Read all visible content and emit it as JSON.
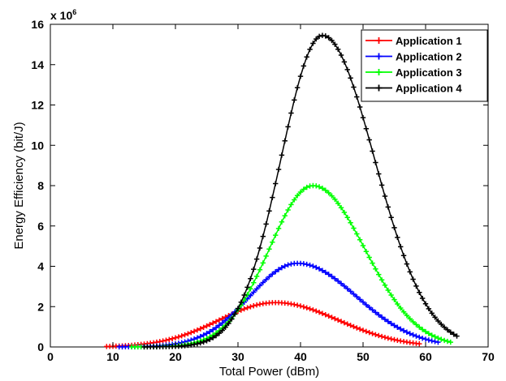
{
  "chart_data": {
    "type": "line",
    "xlabel": "Total Power (dBm)",
    "ylabel": "Energy Efficiency (bit/J)",
    "y_multiplier_base": "x 10",
    "y_multiplier_exp": "6",
    "xlim": [
      0,
      70
    ],
    "ylim": [
      0,
      16
    ],
    "x_ticks": [
      0,
      10,
      20,
      30,
      40,
      50,
      60,
      70
    ],
    "y_ticks": [
      0,
      2,
      4,
      6,
      8,
      10,
      12,
      14,
      16
    ],
    "grid": false,
    "legend_position": "top-right",
    "marker": "+",
    "series": [
      {
        "name": "Application 1",
        "color": "#ff0000",
        "x_start": 9,
        "x_end": 59,
        "peak_x": 36,
        "peak_y": 2.2,
        "sigma_left": 9.0,
        "sigma_right": 10.0
      },
      {
        "name": "Application 2",
        "color": "#0000ff",
        "x_start": 11,
        "x_end": 62,
        "peak_x": 39.5,
        "peak_y": 4.15,
        "sigma_left": 7.6,
        "sigma_right": 9.4
      },
      {
        "name": "Application 3",
        "color": "#00ff00",
        "x_start": 13,
        "x_end": 64,
        "peak_x": 42,
        "peak_y": 8.0,
        "sigma_left": 7.0,
        "sigma_right": 8.3
      },
      {
        "name": "Application 4",
        "color": "#000000",
        "x_start": 15,
        "x_end": 65,
        "peak_x": 43.5,
        "peak_y": 15.45,
        "sigma_left": 6.6,
        "sigma_right": 8.3
      }
    ]
  }
}
